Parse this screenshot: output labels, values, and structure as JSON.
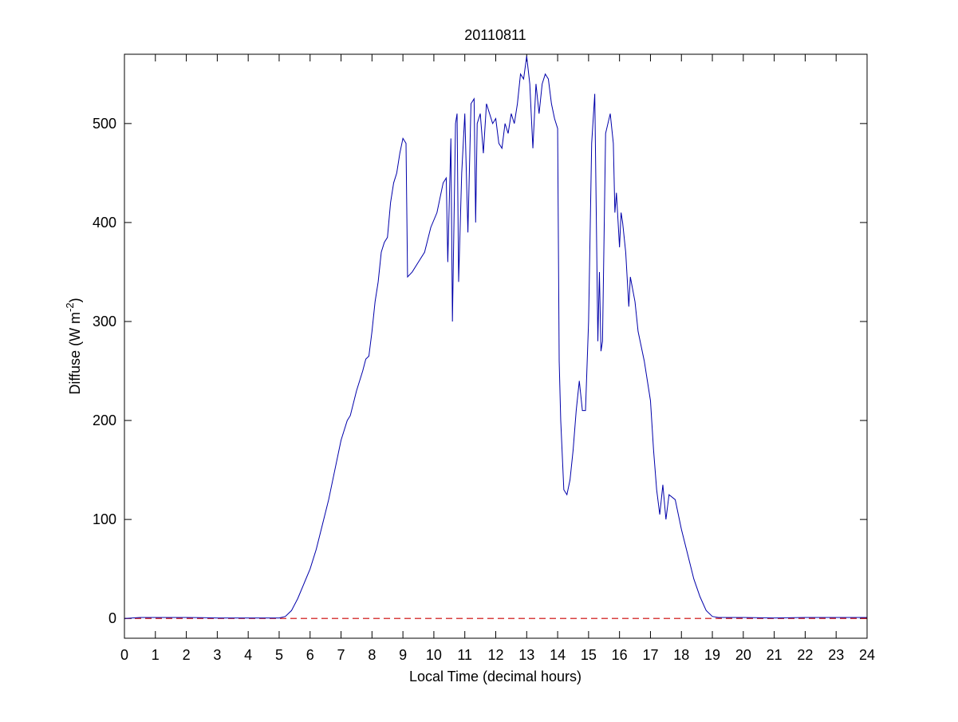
{
  "chart_data": {
    "type": "line",
    "title": "20110811",
    "xlabel": "Local Time (decimal hours)",
    "ylabel": {
      "text": "Diffuse (W m",
      "superscript": "-2",
      "suffix": ")"
    },
    "xlim": [
      0,
      24
    ],
    "ylim": [
      -20,
      570
    ],
    "xticks": [
      0,
      1,
      2,
      3,
      4,
      5,
      6,
      7,
      8,
      9,
      10,
      11,
      12,
      13,
      14,
      15,
      16,
      17,
      18,
      19,
      20,
      21,
      22,
      23,
      24
    ],
    "yticks": [
      0,
      100,
      200,
      300,
      400,
      500
    ],
    "reference_line": {
      "y": 0,
      "color": "#cc0000"
    },
    "series": [
      {
        "color": "#0000aa",
        "x": [
          0,
          0.5,
          1,
          2,
          3,
          4,
          5,
          5.2,
          5.4,
          5.6,
          5.8,
          6,
          6.2,
          6.4,
          6.6,
          6.8,
          7,
          7.2,
          7.3,
          7.5,
          7.7,
          7.8,
          7.9,
          8.0,
          8.1,
          8.2,
          8.3,
          8.4,
          8.5,
          8.6,
          8.7,
          8.8,
          8.9,
          9.0,
          9.1,
          9.15,
          9.3,
          9.5,
          9.7,
          9.9,
          10.1,
          10.3,
          10.4,
          10.45,
          10.55,
          10.6,
          10.7,
          10.75,
          10.8,
          10.9,
          11.0,
          11.1,
          11.2,
          11.3,
          11.35,
          11.4,
          11.5,
          11.6,
          11.7,
          11.8,
          11.9,
          12.0,
          12.1,
          12.2,
          12.3,
          12.4,
          12.5,
          12.6,
          12.7,
          12.8,
          12.9,
          13.0,
          13.1,
          13.2,
          13.3,
          13.4,
          13.5,
          13.6,
          13.7,
          13.8,
          13.9,
          14.0,
          14.05,
          14.1,
          14.2,
          14.3,
          14.4,
          14.5,
          14.6,
          14.7,
          14.8,
          14.9,
          15.0,
          15.1,
          15.2,
          15.3,
          15.35,
          15.4,
          15.45,
          15.55,
          15.7,
          15.8,
          15.85,
          15.9,
          16.0,
          16.05,
          16.1,
          16.2,
          16.3,
          16.35,
          16.5,
          16.6,
          16.8,
          17.0,
          17.1,
          17.2,
          17.3,
          17.4,
          17.5,
          17.6,
          17.8,
          18.0,
          18.2,
          18.4,
          18.6,
          18.8,
          19.0,
          19.2,
          20,
          21,
          22,
          23,
          24
        ],
        "values": [
          0,
          1,
          1,
          1,
          0.5,
          0.5,
          0.5,
          2,
          8,
          20,
          35,
          50,
          70,
          95,
          120,
          150,
          180,
          200,
          205,
          230,
          250,
          262,
          265,
          290,
          320,
          340,
          370,
          380,
          385,
          420,
          440,
          450,
          470,
          485,
          480,
          345,
          350,
          360,
          370,
          395,
          410,
          440,
          445,
          360,
          485,
          300,
          500,
          510,
          340,
          450,
          510,
          390,
          520,
          525,
          400,
          500,
          510,
          470,
          520,
          510,
          500,
          505,
          480,
          475,
          500,
          490,
          510,
          500,
          520,
          550,
          545,
          568,
          540,
          475,
          540,
          510,
          540,
          550,
          545,
          520,
          505,
          495,
          260,
          200,
          130,
          125,
          140,
          170,
          210,
          240,
          210,
          210,
          300,
          480,
          530,
          280,
          350,
          270,
          280,
          490,
          510,
          480,
          410,
          430,
          375,
          410,
          400,
          370,
          315,
          345,
          320,
          290,
          260,
          220,
          170,
          130,
          105,
          135,
          100,
          125,
          120,
          90,
          65,
          40,
          22,
          8,
          2,
          1,
          1,
          0.5,
          1,
          1,
          1
        ]
      }
    ]
  }
}
